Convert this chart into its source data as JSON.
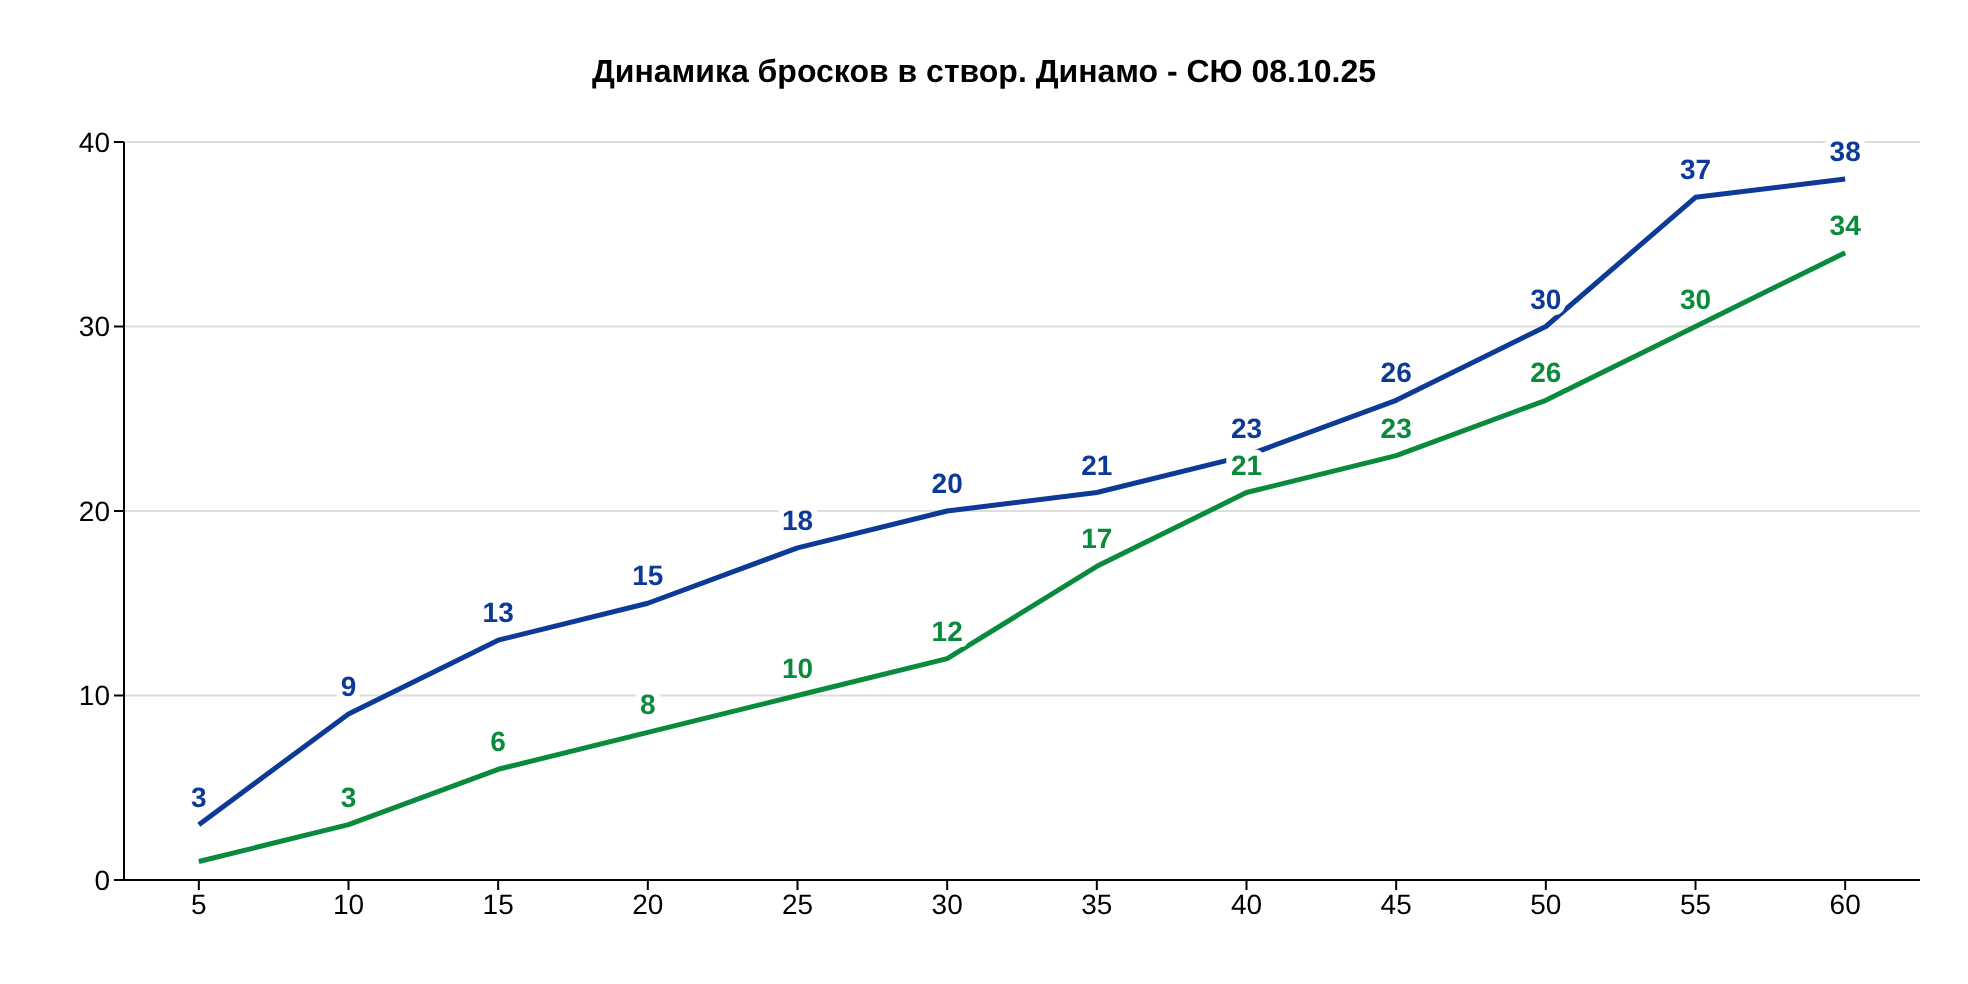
{
  "chart_data": {
    "type": "line",
    "title": "Динамика бросков в створ. Динамо - СЮ 08.10.25",
    "x": [
      5,
      10,
      15,
      20,
      25,
      30,
      35,
      40,
      45,
      50,
      55,
      60
    ],
    "series": [
      {
        "color": "#0d3a96",
        "values": [
          3,
          9,
          13,
          15,
          18,
          20,
          21,
          23,
          26,
          30,
          37,
          38
        ],
        "value_labels": [
          "3",
          "9",
          "13",
          "15",
          "18",
          "20",
          "21",
          "23",
          "26",
          "30",
          "37",
          "38"
        ]
      },
      {
        "color": "#0a8a3c",
        "values": [
          1,
          3,
          6,
          8,
          10,
          12,
          17,
          21,
          23,
          26,
          30,
          34
        ],
        "value_labels": [
          null,
          "3",
          "6",
          "8",
          "10",
          "12",
          "17",
          "21",
          "23",
          "26",
          "30",
          "34"
        ]
      }
    ],
    "xlim": [
      2.5,
      62.5
    ],
    "xticks": [
      5,
      10,
      15,
      20,
      25,
      30,
      35,
      40,
      45,
      50,
      55,
      60
    ],
    "ylim": [
      0,
      40
    ],
    "yticks": [
      0,
      10,
      20,
      30,
      40
    ],
    "grid": "y",
    "legend": false,
    "marker": "none",
    "line_style": "solid"
  }
}
